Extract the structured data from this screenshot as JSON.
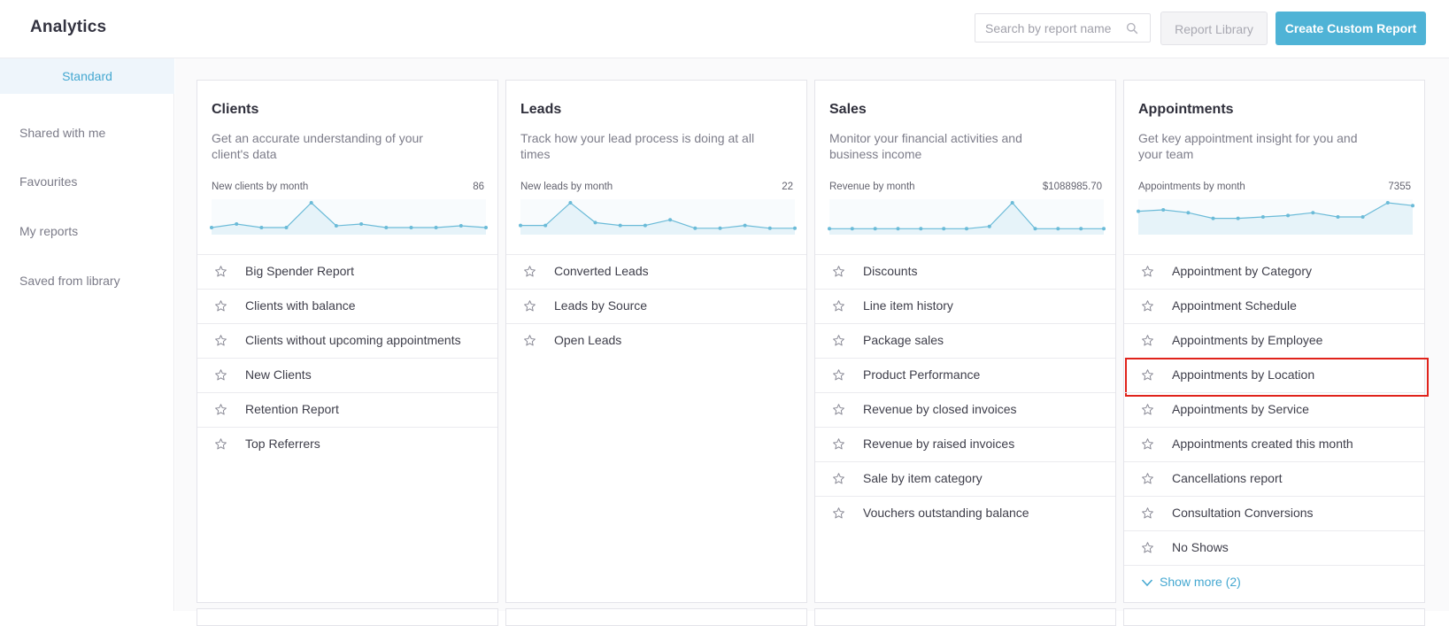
{
  "app": {
    "title": "Analytics"
  },
  "header": {
    "search_placeholder": "Search by report name",
    "report_library_label": "Report Library",
    "create_report_label": "Create Custom Report"
  },
  "sidebar": {
    "active": "Standard",
    "items": [
      "Shared with me",
      "Favourites",
      "My reports",
      "Saved from library"
    ]
  },
  "colors": {
    "accent": "#4fb3d6",
    "highlight": "#e0231b",
    "spark": "#6bbbd8"
  },
  "cards": [
    {
      "title": "Clients",
      "description": "Get an accurate understanding of your client's data",
      "metric_label": "New clients by month",
      "metric_value": "86",
      "spark": [
        2,
        4,
        2,
        2,
        16,
        3,
        4,
        2,
        2,
        2,
        3,
        2
      ],
      "reports": [
        "Big Spender Report",
        "Clients with balance",
        "Clients without upcoming appointments",
        "New Clients",
        "Retention Report",
        "Top Referrers"
      ],
      "show_more": null
    },
    {
      "title": "Leads",
      "description": "Track how your lead process is doing at all times",
      "metric_label": "New leads by month",
      "metric_value": "22",
      "spark": [
        2,
        2,
        10,
        3,
        2,
        2,
        4,
        1,
        1,
        2,
        1,
        1
      ],
      "reports": [
        "Converted Leads",
        "Leads by Source",
        "Open Leads"
      ],
      "show_more": null
    },
    {
      "title": "Sales",
      "description": "Monitor your financial activities and business income",
      "metric_label": "Revenue by month",
      "metric_value": "$1088985.70",
      "spark": [
        1,
        1,
        1,
        1,
        1,
        1,
        1,
        2,
        12,
        1,
        1,
        1,
        1
      ],
      "reports": [
        "Discounts",
        "Line item history",
        "Package sales",
        "Product Performance",
        "Revenue by closed invoices",
        "Revenue by raised invoices",
        "Sale by item category",
        "Vouchers outstanding balance"
      ],
      "show_more": null
    },
    {
      "title": "Appointments",
      "description": "Get key appointment insight for you and your team",
      "metric_label": "Appointments by month",
      "metric_value": "7355",
      "spark": [
        14,
        15,
        13,
        9,
        9,
        10,
        11,
        13,
        10,
        10,
        20,
        18
      ],
      "reports": [
        "Appointment by Category",
        "Appointment Schedule",
        "Appointments by Employee",
        "Appointments by Location",
        "Appointments by Service",
        "Appointments created this month",
        "Cancellations report",
        "Consultation Conversions",
        "No Shows"
      ],
      "highlighted_report": "Appointments by Location",
      "show_more": "Show more (2)"
    }
  ]
}
